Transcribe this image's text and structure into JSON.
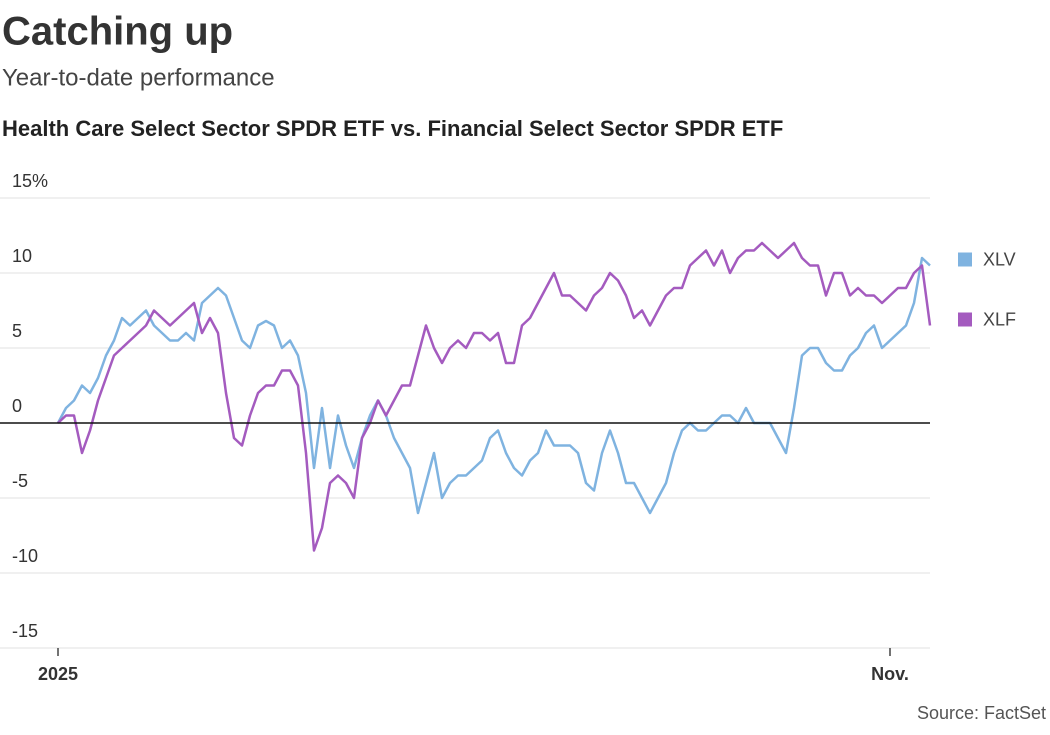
{
  "chart_data": {
    "type": "line",
    "title": "Catching up",
    "subtitle": "Year-to-date performance",
    "chart_title": "Health Care Select Sector SPDR ETF vs. Financial Select Sector SPDR ETF",
    "source": "Source: FactSet",
    "categories": [
      "2025",
      null,
      null,
      null,
      null,
      null,
      null,
      null,
      null,
      null,
      null,
      null,
      null,
      null,
      null,
      null,
      null,
      null,
      null,
      null,
      null,
      null,
      null,
      null,
      null,
      null,
      null,
      null,
      null,
      null,
      null,
      null,
      null,
      null,
      null,
      null,
      null,
      null,
      null,
      null,
      null,
      null,
      null,
      null,
      null,
      null,
      null,
      null,
      null,
      null,
      null,
      null,
      null,
      null,
      null,
      null,
      null,
      null,
      null,
      null,
      null,
      null,
      null,
      null,
      null,
      null,
      null,
      null,
      null,
      null,
      null,
      null,
      null,
      null,
      null,
      null,
      null,
      null,
      null,
      null,
      null,
      null,
      null,
      null,
      null,
      null,
      null,
      null,
      null,
      null,
      null,
      null,
      null,
      null,
      null,
      null,
      null,
      null,
      null,
      null,
      null,
      null,
      null,
      null,
      "Nov.",
      null,
      null,
      null,
      null,
      null
    ],
    "series": [
      {
        "name": "XLV",
        "color": "#7fb3e0",
        "values": [
          0,
          1,
          1.5,
          2.5,
          2,
          3,
          4.5,
          5.5,
          7,
          6.5,
          7,
          7.5,
          6.5,
          6,
          5.5,
          5.5,
          6,
          5.5,
          8,
          8.5,
          9,
          8.5,
          7,
          5.5,
          5,
          6.5,
          6.8,
          6.5,
          5,
          5.5,
          4.5,
          2,
          -3,
          1,
          -3,
          0.5,
          -1.5,
          -3,
          -1,
          0.5,
          1.5,
          0.5,
          -1,
          -2,
          -3,
          -6,
          -4,
          -2,
          -5,
          -4,
          -3.5,
          -3.5,
          -3,
          -2.5,
          -1,
          -0.5,
          -2,
          -3,
          -3.5,
          -2.5,
          -2,
          -0.5,
          -1.5,
          -1.5,
          -1.5,
          -2,
          -4,
          -4.5,
          -2,
          -0.5,
          -2,
          -4,
          -4,
          -5,
          -6,
          -5,
          -4,
          -2,
          -0.5,
          0,
          -0.5,
          -0.5,
          0,
          0.5,
          0.5,
          0,
          1,
          0,
          0,
          0,
          -1,
          -2,
          1,
          4.5,
          5,
          5,
          4,
          3.5,
          3.5,
          4.5,
          5,
          6,
          6.5,
          5,
          5.5,
          6,
          6.5,
          8,
          11,
          10.5
        ]
      },
      {
        "name": "XLF",
        "color": "#a45bbf",
        "values": [
          0,
          0.5,
          0.5,
          -2,
          -0.5,
          1.5,
          3,
          4.5,
          5,
          5.5,
          6,
          6.5,
          7.5,
          7,
          6.5,
          7,
          7.5,
          8,
          6,
          7,
          6,
          2,
          -1,
          -1.5,
          0.5,
          2,
          2.5,
          2.5,
          3.5,
          3.5,
          2.5,
          -2,
          -8.5,
          -7,
          -4,
          -3.5,
          -4,
          -5,
          -1,
          0,
          1.5,
          0.5,
          1.5,
          2.5,
          2.5,
          4.5,
          6.5,
          5,
          4,
          5,
          5.5,
          5,
          6,
          6,
          5.5,
          6,
          4,
          4,
          6.5,
          7,
          8,
          9,
          10,
          8.5,
          8.5,
          8,
          7.5,
          8.5,
          9,
          10,
          9.5,
          8.5,
          7,
          7.5,
          6.5,
          7.5,
          8.5,
          9,
          9,
          10.5,
          11,
          11.5,
          10.5,
          11.5,
          10,
          11,
          11.5,
          11.5,
          12,
          11.5,
          11,
          11.5,
          12,
          11,
          10.5,
          10.5,
          8.5,
          10,
          10,
          8.5,
          9,
          8.5,
          8.5,
          8,
          8.5,
          9,
          9,
          10,
          10.5,
          6.5
        ]
      }
    ],
    "ylim": [
      -15,
      15
    ],
    "yticks": [
      {
        "value": 15,
        "label": "15%"
      },
      10,
      5,
      0,
      -5,
      -10,
      -15
    ],
    "grid": true
  }
}
